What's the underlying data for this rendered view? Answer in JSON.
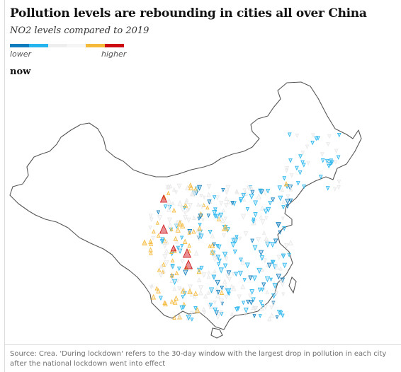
{
  "header": {
    "title": "Pollution levels are rebounding in cities all over China",
    "subtitle": "NO2 levels compared to 2019"
  },
  "legend": {
    "lower_label": "lower",
    "higher_label": "higher",
    "colors": [
      "#0d7dbd",
      "#24b5ee",
      "#eeeeee",
      "#f5f5f5",
      "#f5b93a",
      "#cc0a11"
    ]
  },
  "map": {
    "period_label": "now",
    "region": "China",
    "marker_colors": {
      "much_lower": "#0d7dbd",
      "lower": "#24b5ee",
      "similar": "#e8e8e8",
      "higher": "#f5b93a",
      "much_higher": "#cc0a11"
    }
  },
  "footer": {
    "source": "Source: Crea. 'During lockdown' refers to the 30-day window with the largest drop in pollution in each city after the national lockdown went into effect"
  }
}
